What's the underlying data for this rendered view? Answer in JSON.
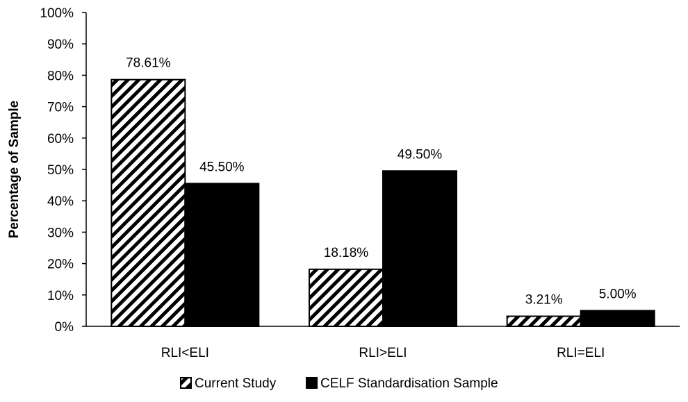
{
  "chart_data": {
    "type": "bar",
    "categories": [
      "RLI<ELI",
      "RLI>ELI",
      "RLI=ELI"
    ],
    "series": [
      {
        "name": "Current Study",
        "values": [
          78.61,
          18.18,
          3.21
        ],
        "labels": [
          "78.61%",
          "18.18%",
          "3.21%"
        ],
        "fill": "hatch",
        "color": "#000000"
      },
      {
        "name": "CELF Standardisation Sample",
        "values": [
          45.5,
          49.5,
          5.0
        ],
        "labels": [
          "45.50%",
          "49.50%",
          "5.00%"
        ],
        "fill": "solid",
        "color": "#000000"
      }
    ],
    "title": "",
    "xlabel": "",
    "ylabel": "Percentage of Sample",
    "ylim": [
      0,
      100
    ],
    "yticks": [
      "0%",
      "10%",
      "20%",
      "30%",
      "40%",
      "50%",
      "60%",
      "70%",
      "80%",
      "90%",
      "100%"
    ],
    "grid": false,
    "legend_position": "bottom"
  }
}
